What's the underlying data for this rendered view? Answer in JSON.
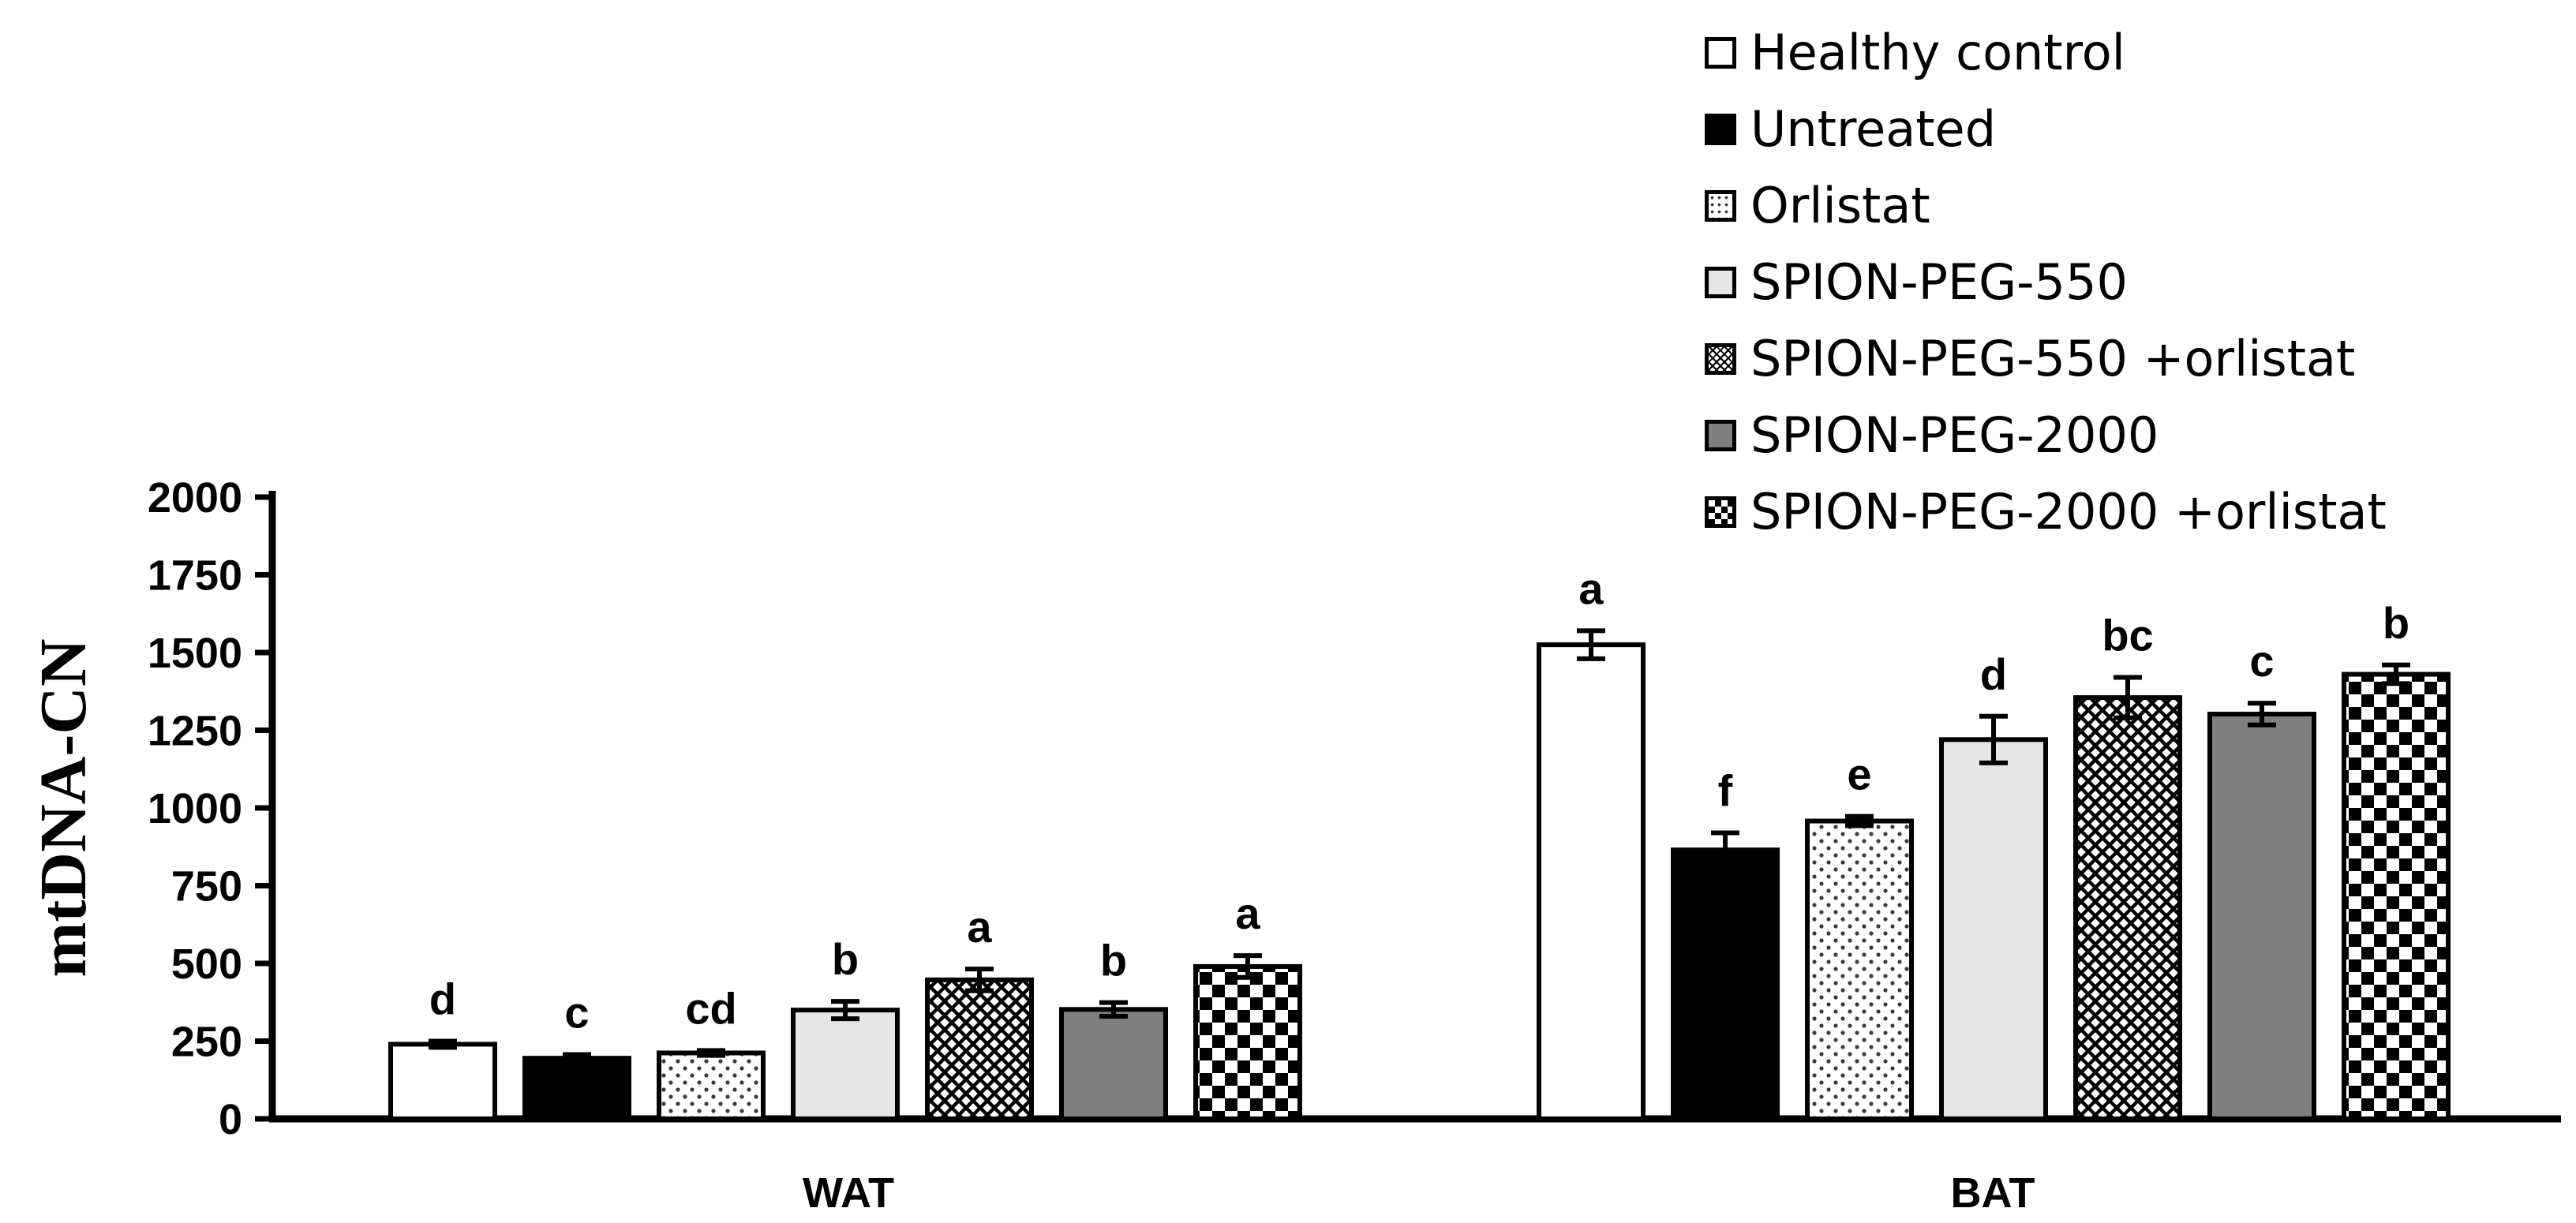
{
  "chart_data": {
    "type": "bar",
    "title": "",
    "xlabel": "",
    "ylabel": "mtDNA-CN",
    "ylim": [
      0,
      2000
    ],
    "yticks": [
      0,
      250,
      500,
      750,
      1000,
      1250,
      1500,
      1750,
      2000
    ],
    "ytick_labels": [
      "0",
      "250",
      "500",
      "750",
      "1000",
      "1250",
      "1500",
      "1750",
      "2000"
    ],
    "categories": [
      "WAT",
      "BAT"
    ],
    "legend_position": "top-right",
    "series": [
      {
        "name": "Healthy control",
        "pattern": "white",
        "values": [
          240,
          1525
        ],
        "errors": [
          10,
          45
        ],
        "letters": [
          "d",
          "a"
        ]
      },
      {
        "name": "Untreated",
        "pattern": "black",
        "values": [
          195,
          865
        ],
        "errors": [
          12,
          55
        ],
        "letters": [
          "c",
          "f"
        ]
      },
      {
        "name": "Orlistat",
        "pattern": "dots",
        "values": [
          212,
          958
        ],
        "errors": [
          8,
          15
        ],
        "letters": [
          "cd",
          "e"
        ]
      },
      {
        "name": "SPION-PEG-550",
        "pattern": "lightgray",
        "values": [
          350,
          1220
        ],
        "errors": [
          28,
          75
        ],
        "letters": [
          "b",
          "d"
        ]
      },
      {
        "name": "SPION-PEG-550 +orlistat",
        "pattern": "crosshatch",
        "values": [
          447,
          1355
        ],
        "errors": [
          35,
          65
        ],
        "letters": [
          "a",
          "bc"
        ]
      },
      {
        "name": "SPION-PEG-2000",
        "pattern": "darkgray",
        "values": [
          352,
          1302
        ],
        "errors": [
          22,
          35
        ],
        "letters": [
          "b",
          "c"
        ]
      },
      {
        "name": "SPION-PEG-2000 +orlistat",
        "pattern": "checker",
        "values": [
          490,
          1430
        ],
        "errors": [
          35,
          30
        ],
        "letters": [
          "a",
          "b"
        ]
      }
    ]
  }
}
